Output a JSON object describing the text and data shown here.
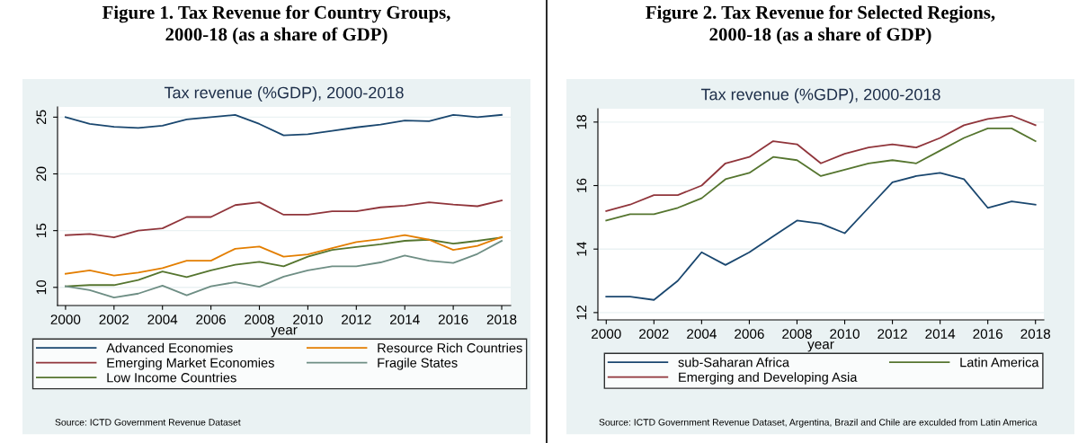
{
  "chart_data": [
    {
      "type": "line",
      "title": "Figure 1. Tax Revenue for Country Groups,\n2000-18 (as a share of GDP)",
      "subtitle": "Tax revenue (%GDP), 2000-2018",
      "xlabel": "year",
      "x": [
        2000,
        2001,
        2002,
        2003,
        2004,
        2005,
        2006,
        2007,
        2008,
        2009,
        2010,
        2011,
        2012,
        2013,
        2014,
        2015,
        2016,
        2017,
        2018
      ],
      "series": [
        {
          "name": "Advanced Economies",
          "color": "#1a476f",
          "values": [
            25.0,
            24.4,
            24.15,
            24.05,
            24.25,
            24.8,
            25.0,
            25.2,
            24.4,
            23.4,
            23.5,
            23.8,
            24.1,
            24.35,
            24.7,
            24.65,
            25.2,
            25.0,
            25.2
          ]
        },
        {
          "name": "Emerging Market Economies",
          "color": "#90353b",
          "values": [
            14.6,
            14.7,
            14.4,
            15.0,
            15.2,
            16.2,
            16.2,
            17.25,
            17.5,
            16.4,
            16.4,
            16.7,
            16.7,
            17.05,
            17.2,
            17.5,
            17.3,
            17.15,
            17.65
          ]
        },
        {
          "name": "Low Income Countries",
          "color": "#55752f",
          "values": [
            10.1,
            10.2,
            10.2,
            10.65,
            11.4,
            10.9,
            11.5,
            12.0,
            12.25,
            11.85,
            12.7,
            13.3,
            13.55,
            13.8,
            14.1,
            14.2,
            13.85,
            14.1,
            14.4
          ]
        },
        {
          "name": "Resource Rich Countries",
          "color": "#e37e00",
          "values": [
            11.2,
            11.5,
            11.05,
            11.3,
            11.7,
            12.35,
            12.35,
            13.4,
            13.6,
            12.7,
            12.9,
            13.45,
            14.0,
            14.25,
            14.6,
            14.2,
            13.3,
            13.65,
            14.45
          ]
        },
        {
          "name": "Fragile States",
          "color": "#6e8e84",
          "values": [
            10.1,
            9.75,
            9.1,
            9.45,
            10.15,
            9.3,
            10.1,
            10.45,
            10.05,
            10.95,
            11.5,
            11.85,
            11.85,
            12.2,
            12.8,
            12.35,
            12.15,
            12.95,
            14.1
          ]
        }
      ],
      "xlim": [
        1999.67,
        2018.37
      ],
      "xticks": [
        2000,
        2002,
        2004,
        2006,
        2008,
        2010,
        2012,
        2014,
        2016,
        2018
      ],
      "ylim": [
        8.4,
        25.9
      ],
      "yticks": [
        10,
        15,
        20,
        25
      ],
      "grid": "y",
      "legend": "bottom",
      "line_style": "solid",
      "marker": "none",
      "annotations": [
        "Source: ICTD Government Revenue Dataset"
      ]
    },
    {
      "type": "line",
      "title": "Figure 2. Tax Revenue for Selected Regions,\n2000-18 (as a share of GDP)",
      "subtitle": "Tax revenue (%GDP), 2000-2018",
      "xlabel": "year",
      "x": [
        2000,
        2001,
        2002,
        2003,
        2004,
        2005,
        2006,
        2007,
        2008,
        2009,
        2010,
        2011,
        2012,
        2013,
        2014,
        2015,
        2016,
        2017,
        2018
      ],
      "series": [
        {
          "name": "sub-Saharan Africa",
          "color": "#1a476f",
          "values": [
            12.5,
            12.5,
            12.4,
            13.0,
            13.9,
            13.5,
            13.9,
            14.4,
            14.9,
            14.8,
            14.5,
            15.3,
            16.1,
            16.3,
            16.4,
            16.2,
            15.3,
            15.5,
            15.4
          ]
        },
        {
          "name": "Emerging and Developing Asia",
          "color": "#90353b",
          "values": [
            15.2,
            15.4,
            15.7,
            15.7,
            16.0,
            16.7,
            16.9,
            17.4,
            17.3,
            16.7,
            17.0,
            17.2,
            17.3,
            17.2,
            17.5,
            17.9,
            18.1,
            18.2,
            17.9
          ]
        },
        {
          "name": "Latin America",
          "color": "#55752f",
          "values": [
            14.9,
            15.1,
            15.1,
            15.3,
            15.6,
            16.2,
            16.4,
            16.9,
            16.8,
            16.3,
            16.5,
            16.7,
            16.8,
            16.7,
            17.1,
            17.5,
            17.8,
            17.8,
            17.4
          ]
        }
      ],
      "xlim": [
        1999.65,
        2018.35
      ],
      "xticks": [
        2000,
        2002,
        2004,
        2006,
        2008,
        2010,
        2012,
        2014,
        2016,
        2018
      ],
      "ylim": [
        11.77,
        18.42
      ],
      "yticks": [
        12,
        14,
        16,
        18
      ],
      "grid": "y",
      "legend": "bottom",
      "line_style": "solid",
      "marker": "none",
      "annotations": [
        "Source: ICTD Government Revenue Dataset, Argentina, Brazil and Chile are exculded from Latin America"
      ]
    }
  ]
}
